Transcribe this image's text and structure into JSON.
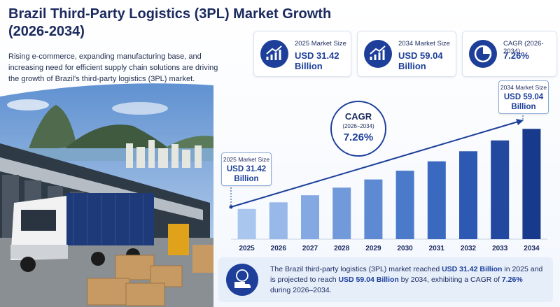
{
  "header": {
    "title": "Brazil Third-Party Logistics (3PL) Market Growth (2026-2034)",
    "subtitle": "Rising e-commerce, expanding manufacturing base, and increasing need for efficient supply chain solutions are driving the growth of Brazil's third-party logistics (3PL) market."
  },
  "stats": [
    {
      "label": "2025 Market Size",
      "value": "USD 31.42 Billion"
    },
    {
      "label": "2034 Market Size",
      "value": "USD 59.04 Billion"
    },
    {
      "label": "CAGR (2026-2034)",
      "value": "7.26%"
    }
  ],
  "chart_data": {
    "type": "bar",
    "categories": [
      "2025",
      "2026",
      "2027",
      "2028",
      "2029",
      "2030",
      "2031",
      "2032",
      "2033",
      "2034"
    ],
    "values": [
      31.42,
      33.7,
      36.15,
      38.77,
      41.59,
      44.61,
      47.85,
      51.32,
      55.05,
      59.04
    ],
    "colors": [
      "#a9c6ee",
      "#97b8e8",
      "#84a9e2",
      "#719adb",
      "#5e8ad3",
      "#4b7acb",
      "#3a69c0",
      "#2d59b2",
      "#22499f",
      "#173a8c"
    ],
    "ylim": [
      21,
      62
    ],
    "annotations": {
      "start": {
        "label": "2025 Market Size",
        "value": "USD 31.42 Billion"
      },
      "cagr": {
        "label": "CAGR",
        "period": "(2026–2034)",
        "value": "7.26%"
      },
      "end": {
        "label": "2034 Market Size",
        "value": "USD 59.04 Billion"
      }
    }
  },
  "summary": [
    {
      "text": "The Brazil third-party logistics (3PL) market reached ",
      "bold": false
    },
    {
      "text": "USD 31.42 Billion",
      "bold": true
    },
    {
      "text": " in 2025 and is projected to reach ",
      "bold": false
    },
    {
      "text": "USD 59.04 Billion",
      "bold": true
    },
    {
      "text": " by 2034, exhibiting a CAGR of ",
      "bold": false
    },
    {
      "text": "7.26%",
      "bold": true
    },
    {
      "text": " during 2026–2034.",
      "bold": false
    }
  ]
}
